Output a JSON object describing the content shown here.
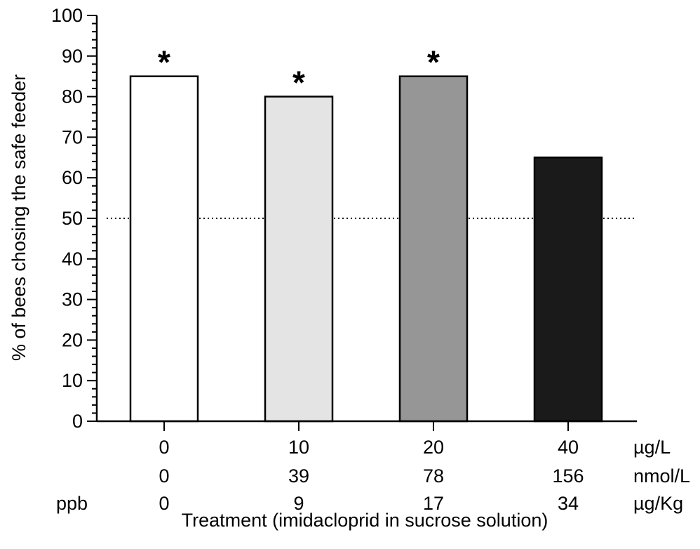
{
  "chart_data": {
    "type": "bar",
    "categories": [
      "0",
      "10",
      "20",
      "40"
    ],
    "values": [
      85,
      80,
      85,
      65
    ],
    "bar_colors": [
      "#ffffff",
      "#e4e4e4",
      "#969696",
      "#1a1a1a"
    ],
    "significant": [
      true,
      true,
      true,
      false
    ],
    "significance_marker": "*",
    "reference_line": 50,
    "ylabel": "% of bees chosing the safe feeder",
    "xlabel": "Treatment (imidacloprid in sucrose solution)",
    "ylim": [
      0,
      100
    ],
    "yticks": [
      "0",
      "10",
      "20",
      "30",
      "40",
      "50",
      "60",
      "70",
      "80",
      "90",
      "100"
    ],
    "x_label_rows": [
      {
        "prefix": "",
        "values": [
          "0",
          "10",
          "20",
          "40"
        ],
        "unit": "µg/L"
      },
      {
        "prefix": "",
        "values": [
          "0",
          "39",
          "78",
          "156"
        ],
        "unit": "nmol/L"
      },
      {
        "prefix": "ppb",
        "values": [
          "0",
          "9",
          "17",
          "34"
        ],
        "unit": "µg/Kg"
      }
    ],
    "grid": false
  }
}
